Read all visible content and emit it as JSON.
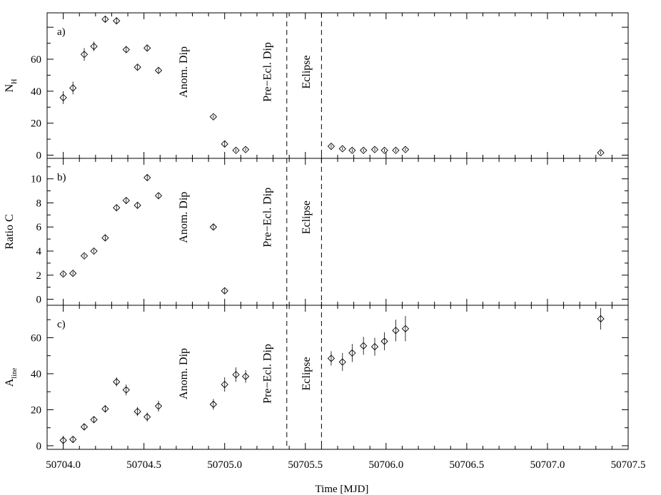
{
  "chart_data": {
    "type": "scatter",
    "xlabel": "Time [MJD]",
    "xlim": [
      50703.9,
      50707.5
    ],
    "xticks": [
      50704.0,
      50704.5,
      50705.0,
      50705.5,
      50706.0,
      50706.5,
      50707.0,
      50707.5
    ],
    "xtick_labels": [
      "50704.0",
      "50704.5",
      "50705.0",
      "50705.5",
      "50706.0",
      "50706.5",
      "50707.0",
      "50707.5"
    ],
    "vlines": [
      50705.385,
      50705.6
    ],
    "panels": [
      {
        "tag": "a)",
        "ylabel": "N",
        "ylabel_sub": "H",
        "ylim": [
          -2,
          89
        ],
        "yticks": [
          0,
          20,
          40,
          60
        ],
        "ytick_labels": [
          "0",
          "20",
          "40",
          "60"
        ],
        "annotations": [
          {
            "text": "Anom. Dip",
            "x": 50704.74,
            "y": 52
          },
          {
            "text": "Pre−Ecl. Dip",
            "x": 50705.26,
            "y": 52
          },
          {
            "text": "Eclipse",
            "x": 50705.5,
            "y": 52
          }
        ],
        "points": [
          {
            "x": 50704.0,
            "y": 36,
            "err": 4
          },
          {
            "x": 50704.06,
            "y": 42,
            "err": 4
          },
          {
            "x": 50704.13,
            "y": 63,
            "err": 4
          },
          {
            "x": 50704.19,
            "y": 68,
            "err": 3
          },
          {
            "x": 50704.26,
            "y": 85,
            "err": 2
          },
          {
            "x": 50704.33,
            "y": 84,
            "err": 2
          },
          {
            "x": 50704.39,
            "y": 66,
            "err": 1.5
          },
          {
            "x": 50704.46,
            "y": 55,
            "err": 1.5
          },
          {
            "x": 50704.52,
            "y": 67,
            "err": 1.5
          },
          {
            "x": 50704.59,
            "y": 53,
            "err": 1.5
          },
          {
            "x": 50704.93,
            "y": 24,
            "err": 1
          },
          {
            "x": 50705.0,
            "y": 7,
            "err": 2
          },
          {
            "x": 50705.07,
            "y": 3,
            "err": 1
          },
          {
            "x": 50705.13,
            "y": 3.5,
            "err": 1
          },
          {
            "x": 50705.66,
            "y": 5.5,
            "err": 1
          },
          {
            "x": 50705.73,
            "y": 4,
            "err": 1
          },
          {
            "x": 50705.79,
            "y": 3,
            "err": 1
          },
          {
            "x": 50705.86,
            "y": 3,
            "err": 1
          },
          {
            "x": 50705.93,
            "y": 3.5,
            "err": 1
          },
          {
            "x": 50705.99,
            "y": 3,
            "err": 1
          },
          {
            "x": 50706.06,
            "y": 3,
            "err": 1
          },
          {
            "x": 50706.12,
            "y": 3.5,
            "err": 1
          },
          {
            "x": 50707.33,
            "y": 1.5,
            "err": 1
          }
        ]
      },
      {
        "tag": "b)",
        "ylabel": "Ratio C",
        "ylabel_sub": "",
        "ylim": [
          -0.5,
          11.7
        ],
        "yticks": [
          0,
          2,
          4,
          6,
          8,
          10
        ],
        "ytick_labels": [
          "0",
          "2",
          "4",
          "6",
          "8",
          "10"
        ],
        "annotations": [
          {
            "text": "Anom. Dip",
            "x": 50704.74,
            "y": 6.8
          },
          {
            "text": "Pre−Ecl. Dip",
            "x": 50705.26,
            "y": 6.8
          },
          {
            "text": "Eclipse",
            "x": 50705.5,
            "y": 6.8
          }
        ],
        "points": [
          {
            "x": 50704.0,
            "y": 2.1,
            "err": 0.15
          },
          {
            "x": 50704.06,
            "y": 2.15,
            "err": 0.15
          },
          {
            "x": 50704.13,
            "y": 3.6,
            "err": 0.15
          },
          {
            "x": 50704.19,
            "y": 4.0,
            "err": 0.15
          },
          {
            "x": 50704.26,
            "y": 5.1,
            "err": 0.2
          },
          {
            "x": 50704.33,
            "y": 7.6,
            "err": 0.2
          },
          {
            "x": 50704.39,
            "y": 8.2,
            "err": 0.2
          },
          {
            "x": 50704.46,
            "y": 7.8,
            "err": 0.2
          },
          {
            "x": 50704.52,
            "y": 10.1,
            "err": 0.25
          },
          {
            "x": 50704.59,
            "y": 8.6,
            "err": 0.2
          },
          {
            "x": 50704.93,
            "y": 6.0,
            "err": 0.2
          },
          {
            "x": 50705.0,
            "y": 0.7,
            "err": 0.2
          }
        ]
      },
      {
        "tag": "c)",
        "ylabel": "A",
        "ylabel_sub": "line",
        "ylim": [
          -2,
          78
        ],
        "yticks": [
          0,
          20,
          40,
          60
        ],
        "ytick_labels": [
          "0",
          "20",
          "40",
          "60"
        ],
        "annotations": [
          {
            "text": "Anom. Dip",
            "x": 50704.74,
            "y": 40
          },
          {
            "text": "Pre−Ecl. Dip",
            "x": 50705.26,
            "y": 40
          },
          {
            "text": "Eclipse",
            "x": 50705.5,
            "y": 40
          }
        ],
        "points": [
          {
            "x": 50704.0,
            "y": 3,
            "err": 2.5
          },
          {
            "x": 50704.06,
            "y": 3.5,
            "err": 1.5
          },
          {
            "x": 50704.13,
            "y": 10.5,
            "err": 1.5
          },
          {
            "x": 50704.19,
            "y": 14.5,
            "err": 1.5
          },
          {
            "x": 50704.26,
            "y": 20.5,
            "err": 2
          },
          {
            "x": 50704.33,
            "y": 35.5,
            "err": 2.5
          },
          {
            "x": 50704.39,
            "y": 31,
            "err": 3
          },
          {
            "x": 50704.46,
            "y": 19,
            "err": 2.5
          },
          {
            "x": 50704.52,
            "y": 16,
            "err": 2.5
          },
          {
            "x": 50704.59,
            "y": 22,
            "err": 3
          },
          {
            "x": 50704.93,
            "y": 23,
            "err": 3
          },
          {
            "x": 50705.0,
            "y": 34,
            "err": 4
          },
          {
            "x": 50705.07,
            "y": 39.5,
            "err": 4
          },
          {
            "x": 50705.13,
            "y": 38.5,
            "err": 3.5
          },
          {
            "x": 50705.66,
            "y": 48.5,
            "err": 4
          },
          {
            "x": 50705.73,
            "y": 46.5,
            "err": 5
          },
          {
            "x": 50705.79,
            "y": 51.5,
            "err": 5
          },
          {
            "x": 50705.86,
            "y": 55.5,
            "err": 5
          },
          {
            "x": 50705.93,
            "y": 55,
            "err": 5
          },
          {
            "x": 50705.99,
            "y": 58,
            "err": 5
          },
          {
            "x": 50706.06,
            "y": 64,
            "err": 6
          },
          {
            "x": 50706.12,
            "y": 65,
            "err": 7
          },
          {
            "x": 50707.33,
            "y": 70.5,
            "err": 6
          }
        ]
      }
    ]
  }
}
